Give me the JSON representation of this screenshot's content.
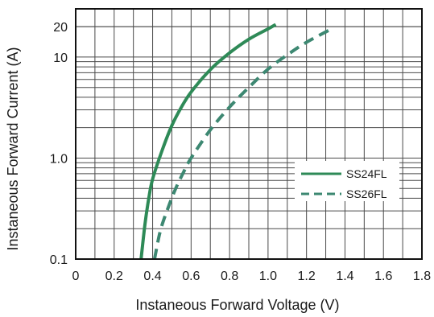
{
  "chart_data": {
    "type": "line",
    "xlabel": "Instaneous Forward Voltage (V)",
    "ylabel": "Instaneous Forward Current  (A)",
    "xlim": [
      0,
      1.8
    ],
    "ylim": [
      0.1,
      30
    ],
    "yscale": "log",
    "grid": true,
    "legend_position": "right",
    "x_ticks": [
      0,
      0.2,
      0.4,
      0.6,
      0.8,
      1.0,
      1.2,
      1.4,
      1.6,
      1.8
    ],
    "x_tick_labels": [
      "0",
      "0.2",
      "0.4",
      "0.6",
      "0.8",
      "1.0",
      "1.2",
      "1.4",
      "1.6",
      "1.8"
    ],
    "y_ticks": [
      0.1,
      1.0,
      10,
      20
    ],
    "y_tick_labels": [
      "0.1",
      "1.0",
      "10",
      "20"
    ],
    "series": [
      {
        "name": "SS24FL",
        "style": "solid",
        "color": "#2e8a57",
        "x": [
          0.34,
          0.36,
          0.38,
          0.4,
          0.45,
          0.5,
          0.55,
          0.6,
          0.7,
          0.8,
          0.9,
          1.0,
          1.04
        ],
        "y": [
          0.1,
          0.22,
          0.4,
          0.62,
          1.2,
          2.1,
          3.2,
          4.5,
          7.5,
          11.0,
          15.0,
          19.0,
          21.0
        ]
      },
      {
        "name": "SS26FL",
        "style": "dashed",
        "color": "#3d8872",
        "x": [
          0.41,
          0.44,
          0.48,
          0.52,
          0.56,
          0.6,
          0.7,
          0.8,
          0.9,
          1.0,
          1.1,
          1.2,
          1.33
        ],
        "y": [
          0.1,
          0.19,
          0.32,
          0.5,
          0.72,
          1.0,
          1.9,
          3.2,
          5.0,
          7.6,
          10.5,
          14.0,
          19.0
        ]
      }
    ]
  }
}
